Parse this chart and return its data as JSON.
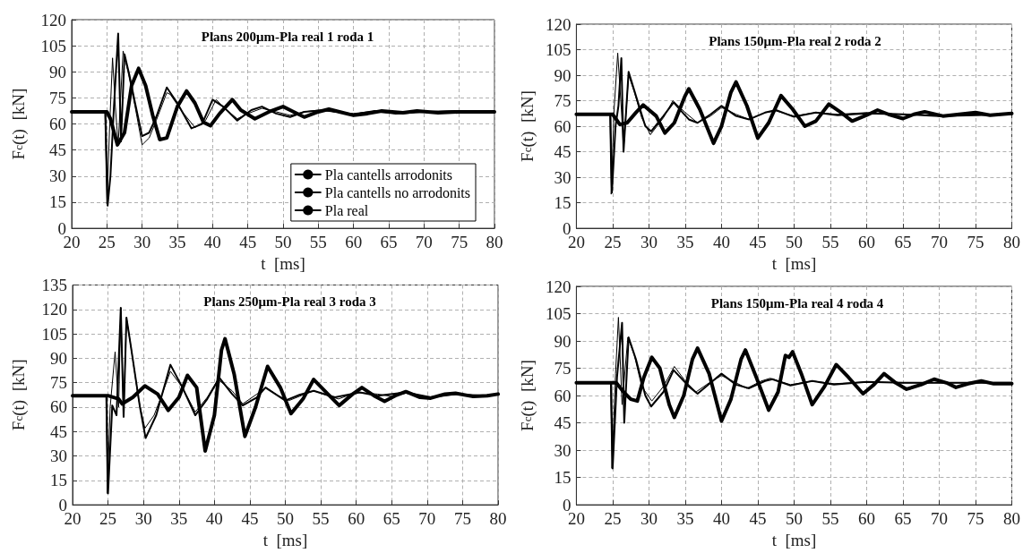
{
  "chart_data": [
    {
      "type": "line",
      "title": "Plans 200μm-Pla real 1 roda 1",
      "xlabel": "t  [ms]",
      "ylabel": "F$_{c}$(t)  [kN]",
      "xlim": [
        20,
        80
      ],
      "xticks": [
        20,
        25,
        30,
        35,
        40,
        45,
        50,
        55,
        60,
        65,
        70,
        75,
        80
      ],
      "ylim": [
        0,
        120
      ],
      "yticks": [
        0,
        15,
        30,
        45,
        60,
        75,
        90,
        105,
        120
      ],
      "grid": true,
      "legend": "bottom right",
      "line_style": "solid",
      "series": [
        {
          "name": "Pla cantells arrodonits",
          "color": "#000000",
          "x": [
            20,
            24.7,
            25.0,
            25.4,
            25.8,
            26.2,
            26.6,
            27.3,
            28,
            29,
            30,
            31,
            32,
            33.5,
            34,
            35.5,
            37.5,
            39,
            40.5,
            42,
            43.5,
            45,
            47,
            49,
            51,
            53,
            55,
            57,
            60,
            62,
            65,
            70,
            75,
            80
          ],
          "values": [
            67,
            67,
            14,
            60,
            98,
            70,
            48,
            102,
            90,
            70,
            48,
            52,
            62,
            78,
            77,
            68,
            58,
            62,
            74,
            68,
            63,
            66,
            69,
            67,
            65,
            67,
            68,
            67,
            66,
            67,
            66.5,
            67,
            67,
            67
          ]
        },
        {
          "name": "Pla cantells no arrodonits",
          "color": "#000000",
          "x": [
            20,
            24.8,
            25.1,
            25.5,
            26.0,
            26.6,
            27,
            27.5,
            28.2,
            29,
            30,
            31,
            32,
            33.5,
            35,
            37,
            38.5,
            40,
            41.5,
            43.5,
            45.5,
            47,
            49,
            51,
            53,
            56,
            60,
            63,
            66,
            70,
            75,
            80
          ],
          "values": [
            67,
            67,
            13,
            30,
            70,
            112,
            50,
            100,
            88,
            72,
            53,
            55,
            64,
            81,
            72,
            57.5,
            60,
            74,
            70,
            62,
            68,
            70,
            66,
            64,
            67,
            68,
            65.5,
            67.5,
            66,
            67,
            67.5,
            67
          ]
        },
        {
          "name": "Pla real",
          "color": "#000000",
          "x": [
            20,
            25,
            25.5,
            26.5,
            27.5,
            28.5,
            29.5,
            30.5,
            31.5,
            32.5,
            33.5,
            35,
            36.3,
            37.5,
            38.7,
            39.7,
            41,
            42.8,
            44,
            46,
            48,
            50,
            51.5,
            53,
            55,
            56.5,
            58,
            60,
            62,
            64,
            67,
            69,
            72,
            75,
            80
          ],
          "values": [
            67,
            67,
            63,
            48,
            55,
            82,
            92,
            82,
            65,
            51,
            52,
            70,
            79,
            72,
            61,
            59,
            66,
            74,
            68,
            63,
            67,
            70,
            67,
            64,
            67,
            68.5,
            67,
            65,
            66,
            67.5,
            66.5,
            67.5,
            66.5,
            67,
            67
          ]
        }
      ]
    },
    {
      "type": "line",
      "title": "Plans 150μm-Pla real 2 roda 2",
      "xlabel": "t  [ms]",
      "ylabel": "F$_{c}$(t)  [kN]",
      "xlim": [
        20,
        80
      ],
      "xticks": [
        20,
        25,
        30,
        35,
        40,
        45,
        50,
        55,
        60,
        65,
        70,
        75,
        80
      ],
      "ylim": [
        0,
        120
      ],
      "yticks": [
        0,
        15,
        30,
        45,
        60,
        75,
        90,
        105,
        120
      ],
      "grid": true,
      "line_style": "solid",
      "series": [
        {
          "color": "#000000",
          "x": [
            20,
            24.6,
            24.8,
            25.2,
            25.7,
            26.2,
            26.5,
            27.2,
            28,
            29,
            30.2,
            32,
            33.3,
            35,
            36.7,
            38.5,
            40,
            42,
            43.8,
            46,
            47.5,
            50,
            53,
            56,
            60,
            65,
            70,
            80
          ],
          "values": [
            67,
            67,
            20,
            70,
            103,
            70,
            46,
            90,
            80,
            65,
            55,
            65,
            75,
            68,
            62,
            66,
            71,
            67,
            64,
            68,
            69,
            66,
            68,
            67,
            68,
            67,
            66.5,
            67
          ]
        },
        {
          "color": "#000000",
          "x": [
            20,
            24.7,
            24.9,
            25.4,
            25.8,
            26.2,
            26.5,
            27.2,
            28.2,
            29.5,
            30.3,
            32,
            33.4,
            35.5,
            36.7,
            38.5,
            40,
            42,
            43.8,
            46,
            47.5,
            50,
            53,
            56,
            60,
            65,
            70,
            80
          ],
          "values": [
            67,
            67,
            21,
            60,
            72,
            100,
            45,
            92,
            78,
            60,
            57,
            66,
            74,
            64,
            62,
            67,
            72,
            66,
            64,
            68,
            69.5,
            65.5,
            68,
            66.5,
            67.5,
            67,
            66,
            67
          ]
        },
        {
          "color": "#000000",
          "x": [
            20,
            25,
            26,
            27,
            28.2,
            29.2,
            31,
            32.2,
            33.5,
            35,
            35.5,
            37,
            38.9,
            40,
            41.3,
            42,
            43.5,
            45,
            46.5,
            48.2,
            49.8,
            51.5,
            53,
            54.8,
            56.5,
            58,
            60,
            61.5,
            63,
            65,
            66.5,
            68,
            70.5,
            75,
            77,
            80
          ],
          "values": [
            67,
            67,
            61,
            62,
            68,
            72.5,
            66,
            56,
            62,
            78,
            82,
            70,
            50,
            60,
            80,
            86,
            72,
            53,
            62,
            78,
            70,
            60,
            63,
            73,
            68,
            63,
            66.5,
            69.5,
            67,
            64.5,
            67,
            68.5,
            66,
            68,
            66.5,
            67.5
          ]
        }
      ]
    },
    {
      "type": "line",
      "title": "Plans 250μm-Pla real 3 roda 3",
      "xlabel": "t  [ms]",
      "ylabel": "F$_{c}$(t)  [kN]",
      "xlim": [
        20,
        80
      ],
      "xticks": [
        20,
        25,
        30,
        35,
        40,
        45,
        50,
        55,
        60,
        65,
        70,
        75,
        80
      ],
      "ylim": [
        0,
        135
      ],
      "yticks": [
        0,
        15,
        30,
        45,
        60,
        75,
        90,
        105,
        120,
        135
      ],
      "grid": true,
      "line_style": "solid",
      "series": [
        {
          "color": "#000000",
          "x": [
            20,
            24.7,
            24.9,
            25.3,
            26,
            26.5,
            26.8,
            27.2,
            27.6,
            28.3,
            29.3,
            30.2,
            31.5,
            32.8,
            33.8,
            35.5,
            37.3,
            39,
            40.5,
            42.5,
            44,
            46,
            47.3,
            49,
            50.5,
            52.5,
            54,
            56,
            57.5,
            60,
            63,
            65,
            67,
            70,
            74,
            77,
            80
          ],
          "values": [
            67,
            67,
            7,
            60,
            94,
            60,
            121,
            54,
            115,
            95,
            65,
            47,
            55,
            70,
            82,
            72,
            57,
            66,
            77,
            70,
            62,
            68,
            72,
            67,
            64,
            67.5,
            70,
            67,
            65,
            69,
            68,
            66.5,
            68.5,
            66,
            68,
            67,
            68
          ]
        },
        {
          "color": "#000000",
          "x": [
            20,
            24.8,
            25,
            25.6,
            26.2,
            26.8,
            27.2,
            27.6,
            28.2,
            29.5,
            30.3,
            31.8,
            33.8,
            35.5,
            37.3,
            39,
            40.7,
            42.5,
            44,
            46,
            47.2,
            50,
            52,
            54,
            57,
            60.5,
            63,
            67,
            70.5,
            74,
            78,
            80
          ],
          "values": [
            67,
            67,
            7,
            61,
            55,
            121,
            54,
            115,
            98,
            60,
            41,
            55,
            86,
            72,
            55,
            65,
            78,
            68,
            61,
            66,
            72,
            64,
            67.5,
            70,
            66,
            69,
            67,
            69,
            66,
            68,
            67,
            68
          ]
        },
        {
          "color": "#000000",
          "x": [
            20,
            25,
            26.5,
            27,
            28.5,
            30.2,
            32,
            33.5,
            35,
            36.2,
            37.5,
            38.7,
            40,
            41,
            41.5,
            42.8,
            44.3,
            45.8,
            47.5,
            49.3,
            50.8,
            52.5,
            54,
            56,
            57.6,
            59.5,
            60.8,
            62.5,
            64,
            65.5,
            67,
            69,
            70.5,
            72.5,
            74,
            76.5,
            78.5,
            80
          ],
          "values": [
            67,
            67,
            65,
            62,
            66,
            73,
            68,
            58,
            66,
            79.5,
            72,
            33,
            55,
            95,
            102,
            80,
            42,
            60,
            85,
            72,
            56,
            65,
            77,
            68,
            61,
            68,
            72,
            67,
            63.5,
            67,
            69.5,
            66,
            65.5,
            68,
            68.5,
            66.5,
            67,
            68
          ]
        }
      ]
    },
    {
      "type": "line",
      "title": "Plans 150μm-Pla real 4 roda 4",
      "xlabel": "t  [ms]",
      "ylabel": "F$_{c}$(t)  [kN]",
      "xlim": [
        20,
        80
      ],
      "xticks": [
        20,
        25,
        30,
        35,
        40,
        45,
        50,
        55,
        60,
        65,
        70,
        75,
        80
      ],
      "ylim": [
        0,
        120
      ],
      "yticks": [
        0,
        15,
        30,
        45,
        60,
        75,
        90,
        105,
        120
      ],
      "grid": true,
      "line_style": "solid",
      "series": [
        {
          "color": "#000000",
          "x": [
            20,
            24.7,
            24.9,
            25.4,
            25.8,
            26.3,
            27.1,
            28,
            29,
            30.4,
            32,
            33.5,
            35,
            36.5,
            38.3,
            40,
            42,
            43.5,
            45.5,
            46.7,
            49.5,
            52.5,
            55.5,
            60,
            65,
            80
          ],
          "values": [
            67,
            67,
            20,
            72,
            103,
            55,
            92,
            82,
            65,
            57,
            65,
            76,
            68,
            62,
            67,
            71,
            67,
            64,
            68,
            69.5,
            66,
            68,
            66.5,
            67.5,
            67,
            67
          ]
        },
        {
          "color": "#000000",
          "x": [
            20,
            24.8,
            25,
            25.6,
            26.3,
            26.6,
            27.2,
            28.2,
            29.5,
            30.3,
            32,
            33.4,
            35.5,
            36.7,
            38.5,
            40,
            42,
            43.8,
            46,
            47,
            49.5,
            52.5,
            55.5,
            60,
            65,
            80
          ],
          "values": [
            67,
            67,
            20,
            70,
            100,
            45,
            92,
            80,
            60,
            54,
            62,
            74,
            65,
            61,
            67,
            72,
            66,
            64,
            68,
            69,
            65.5,
            68,
            66,
            67.5,
            67,
            67
          ]
        },
        {
          "color": "#000000",
          "x": [
            20,
            25.5,
            26.5,
            27.5,
            28.4,
            29.3,
            30.4,
            31.5,
            32.8,
            33.5,
            34.8,
            36,
            36.7,
            38.3,
            40,
            41.3,
            42.7,
            43.3,
            44.8,
            46.5,
            47.8,
            48.8,
            49.3,
            49.8,
            51,
            52.5,
            54.2,
            55.8,
            57.5,
            59.5,
            61,
            62.4,
            64,
            65.5,
            67.5,
            69.3,
            71,
            72.3,
            74,
            75.8,
            77.5,
            80
          ],
          "values": [
            67,
            67,
            62,
            58,
            57,
            70,
            81,
            75,
            55,
            48,
            60,
            80,
            86,
            72,
            46,
            58,
            80,
            85,
            70,
            52,
            62,
            82,
            81,
            84,
            72,
            55,
            65,
            77,
            70,
            61,
            66,
            72,
            67,
            63.5,
            66,
            69,
            67,
            64.5,
            66.5,
            68,
            66.5,
            66.5
          ]
        }
      ]
    }
  ]
}
